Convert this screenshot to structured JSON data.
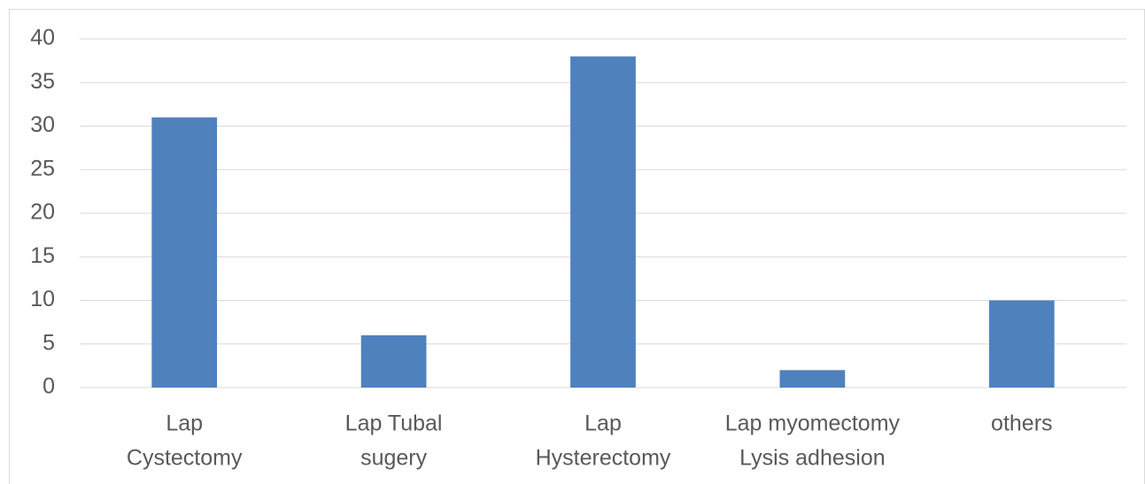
{
  "chart_data": {
    "type": "bar",
    "categories": [
      [
        "Lap",
        "Cystectomy"
      ],
      [
        "Lap Tubal",
        "sugery"
      ],
      [
        "Lap",
        "Hysterectomy"
      ],
      [
        "Lap myomectomy",
        "Lysis adhesion"
      ],
      [
        "others"
      ]
    ],
    "values": [
      31,
      6,
      38,
      2,
      10
    ],
    "color": "#4f81bd",
    "ylim": [
      0,
      40
    ],
    "yticks": [
      0,
      5,
      10,
      15,
      20,
      25,
      30,
      35,
      40
    ],
    "grid": true
  }
}
